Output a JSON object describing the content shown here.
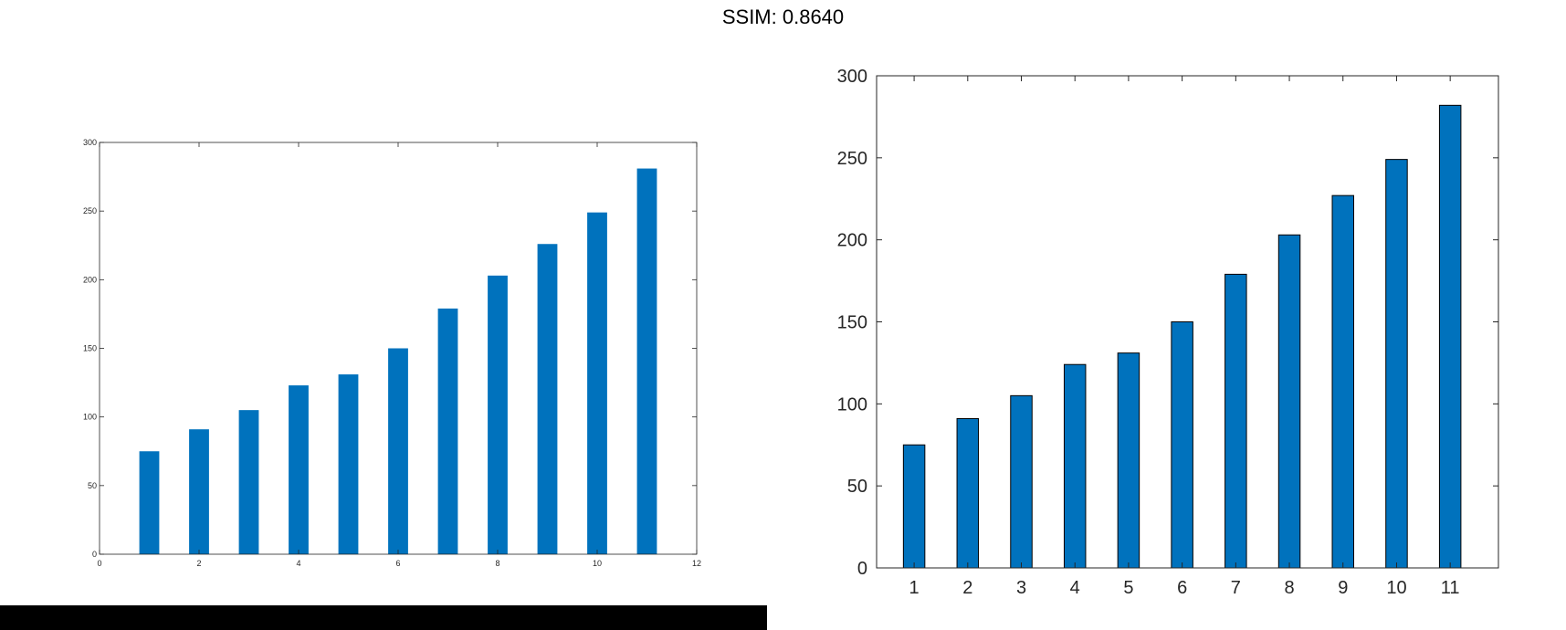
{
  "page": {
    "title": "SSIM: 0.8640"
  },
  "colors": {
    "bar": "#0072BD",
    "axis": "#262626",
    "background": "#ffffff",
    "strip": "#000000"
  },
  "chart_data": [
    {
      "type": "bar",
      "x": [
        1,
        2,
        3,
        4,
        5,
        6,
        7,
        8,
        9,
        10,
        11
      ],
      "values": [
        75,
        91,
        105,
        123,
        131,
        150,
        179,
        203,
        226,
        249,
        281
      ],
      "xlim": [
        0,
        12
      ],
      "ylim": [
        0,
        300
      ],
      "xticks": [
        "0",
        "2",
        "4",
        "6",
        "8",
        "10",
        "12"
      ],
      "yticks": [
        "0",
        "50",
        "100",
        "150",
        "200",
        "250",
        "300"
      ],
      "bar_edges": false,
      "grid": false,
      "title": "",
      "xlabel": "",
      "ylabel": ""
    },
    {
      "type": "bar",
      "categories": [
        "1",
        "2",
        "3",
        "4",
        "5",
        "6",
        "7",
        "8",
        "9",
        "10",
        "11"
      ],
      "values": [
        75,
        91,
        105,
        124,
        131,
        150,
        179,
        203,
        227,
        249,
        282
      ],
      "xlim": [
        0.3,
        11.9
      ],
      "ylim": [
        0,
        300
      ],
      "yticks": [
        "0",
        "50",
        "100",
        "150",
        "200",
        "250",
        "300"
      ],
      "bar_edges": true,
      "grid": false,
      "title": "",
      "xlabel": "",
      "ylabel": ""
    }
  ]
}
